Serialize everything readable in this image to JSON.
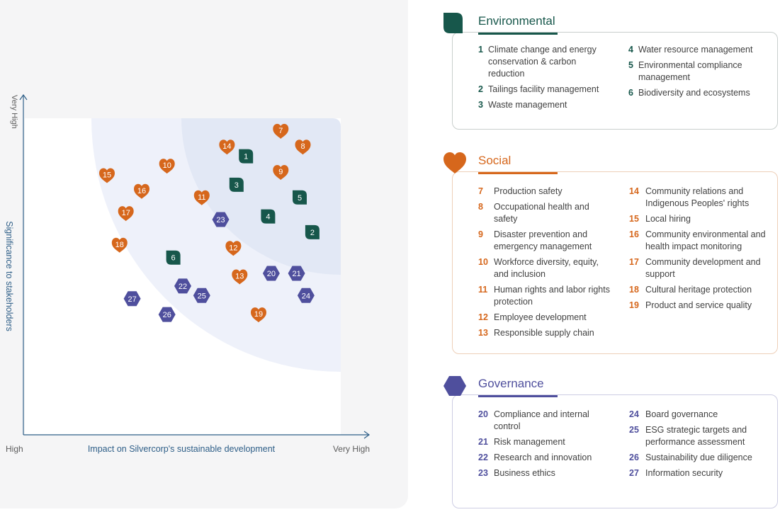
{
  "chart_data": {
    "type": "scatter",
    "xlabel": "Impact on Silvercorp's sustainable development",
    "ylabel": "Significance to stakeholders",
    "x_ticks": [
      "High",
      "Very High"
    ],
    "y_ticks": [
      "High",
      "Very High"
    ],
    "xlim": [
      0,
      100
    ],
    "ylim": [
      0,
      100
    ],
    "grid": false,
    "legend": "right",
    "series": [
      {
        "name": "Environmental",
        "shape": "leaf",
        "color": "#17574b",
        "points": [
          {
            "id": "1",
            "x": 70,
            "y": 88
          },
          {
            "id": "2",
            "x": 91,
            "y": 64
          },
          {
            "id": "3",
            "x": 67,
            "y": 79
          },
          {
            "id": "4",
            "x": 77,
            "y": 69
          },
          {
            "id": "5",
            "x": 87,
            "y": 75
          },
          {
            "id": "6",
            "x": 47,
            "y": 56
          }
        ]
      },
      {
        "name": "Social",
        "shape": "heart",
        "color": "#d6671c",
        "points": [
          {
            "id": "7",
            "x": 81,
            "y": 96
          },
          {
            "id": "8",
            "x": 88,
            "y": 91
          },
          {
            "id": "9",
            "x": 81,
            "y": 83
          },
          {
            "id": "10",
            "x": 45,
            "y": 85
          },
          {
            "id": "11",
            "x": 56,
            "y": 75
          },
          {
            "id": "12",
            "x": 66,
            "y": 59
          },
          {
            "id": "13",
            "x": 68,
            "y": 50
          },
          {
            "id": "14",
            "x": 64,
            "y": 91
          },
          {
            "id": "15",
            "x": 26,
            "y": 82
          },
          {
            "id": "16",
            "x": 37,
            "y": 77
          },
          {
            "id": "17",
            "x": 32,
            "y": 70
          },
          {
            "id": "18",
            "x": 30,
            "y": 60
          },
          {
            "id": "19",
            "x": 74,
            "y": 38
          }
        ]
      },
      {
        "name": "Governance",
        "shape": "hexagon",
        "color": "#4f4f9d",
        "points": [
          {
            "id": "20",
            "x": 78,
            "y": 51
          },
          {
            "id": "21",
            "x": 86,
            "y": 51
          },
          {
            "id": "22",
            "x": 50,
            "y": 47
          },
          {
            "id": "23",
            "x": 62,
            "y": 68
          },
          {
            "id": "24",
            "x": 89,
            "y": 44
          },
          {
            "id": "25",
            "x": 56,
            "y": 44
          },
          {
            "id": "26",
            "x": 45,
            "y": 38
          },
          {
            "id": "27",
            "x": 34,
            "y": 43
          }
        ]
      }
    ]
  },
  "colors": {
    "environmental": "#17574b",
    "social": "#d6671c",
    "governance": "#4f4f9d",
    "axis": "#2f5f88",
    "zone_outer": "#eef1fa",
    "zone_inner": "#e2e8f5"
  },
  "legend": {
    "environmental": {
      "title": "Environmental",
      "icon": "leaf-icon",
      "col1": [
        {
          "num": "1",
          "label": "Climate change and energy conservation & carbon reduction"
        },
        {
          "num": "2",
          "label": "Tailings facility management"
        },
        {
          "num": "3",
          "label": "Waste management"
        }
      ],
      "col2": [
        {
          "num": "4",
          "label": "Water resource management"
        },
        {
          "num": "5",
          "label": "Environmental compliance management"
        },
        {
          "num": "6",
          "label": "Biodiversity and ecosystems"
        }
      ]
    },
    "social": {
      "title": "Social",
      "icon": "heart-icon",
      "col1": [
        {
          "num": "7",
          "label": "Production safety"
        },
        {
          "num": "8",
          "label": "Occupational health and safety"
        },
        {
          "num": "9",
          "label": "Disaster prevention and emergency management"
        },
        {
          "num": "10",
          "label": "Workforce diversity, equity, and inclusion"
        },
        {
          "num": "11",
          "label": "Human rights and labor rights protection"
        },
        {
          "num": "12",
          "label": "Employee development"
        },
        {
          "num": "13",
          "label": "Responsible supply chain"
        }
      ],
      "col2": [
        {
          "num": "14",
          "label": "Community relations and Indigenous Peoples' rights"
        },
        {
          "num": "15",
          "label": "Local hiring"
        },
        {
          "num": "16",
          "label": "Community environmental and health impact monitoring"
        },
        {
          "num": "17",
          "label": "Community development and support"
        },
        {
          "num": "18",
          "label": "Cultural heritage protection"
        },
        {
          "num": "19",
          "label": "Product and service quality"
        }
      ]
    },
    "governance": {
      "title": "Governance",
      "icon": "hexagon-icon",
      "col1": [
        {
          "num": "20",
          "label": "Compliance and internal control"
        },
        {
          "num": "21",
          "label": "Risk management"
        },
        {
          "num": "22",
          "label": "Research and innovation"
        },
        {
          "num": "23",
          "label": "Business ethics"
        }
      ],
      "col2": [
        {
          "num": "24",
          "label": "Board governance"
        },
        {
          "num": "25",
          "label": "ESG strategic targets and performance assessment"
        },
        {
          "num": "26",
          "label": "Sustainability due diligence"
        },
        {
          "num": "27",
          "label": "Information security"
        }
      ]
    }
  }
}
